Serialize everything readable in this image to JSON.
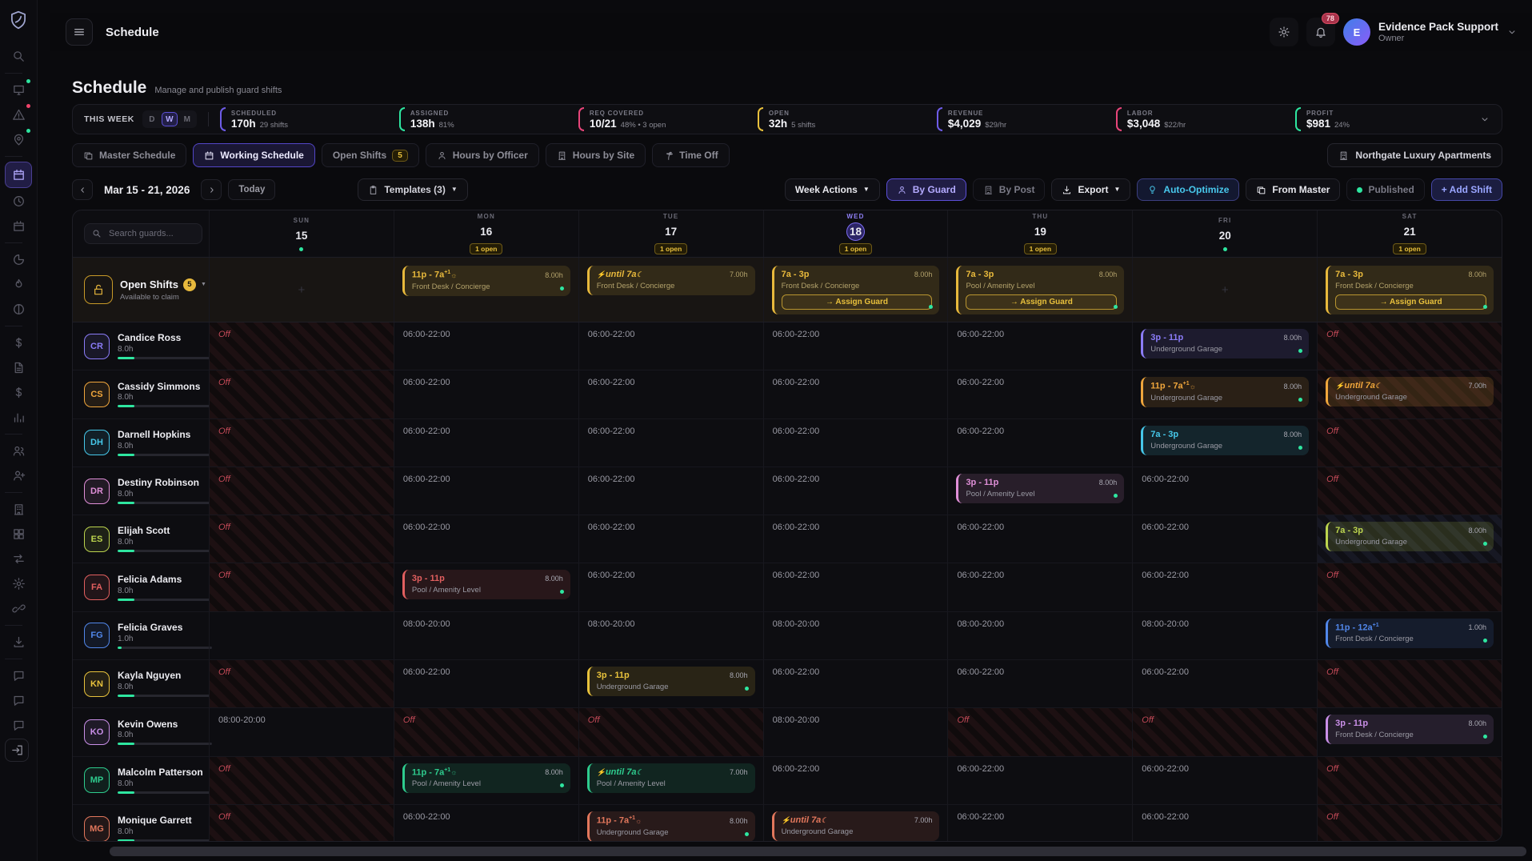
{
  "app": {
    "header_title": "Schedule",
    "notification_count": "78",
    "user": {
      "name": "Evidence Pack Support",
      "role": "Owner",
      "avatar_initial": "E"
    }
  },
  "page": {
    "title": "Schedule",
    "subtitle": "Manage and publish guard shifts"
  },
  "stats": {
    "period_label": "THIS WEEK",
    "periods": [
      {
        "label": "D",
        "active": false
      },
      {
        "label": "W",
        "active": true
      },
      {
        "label": "M",
        "active": false
      }
    ],
    "items": [
      {
        "label": "SCHEDULED",
        "value": "170h",
        "sub": "29 shifts",
        "color": "#6e5ce8"
      },
      {
        "label": "ASSIGNED",
        "value": "138h",
        "sub": "81%",
        "color": "#2ee6a0"
      },
      {
        "label": "REQ COVERED",
        "value": "10/21",
        "sub": "48% • 3 open",
        "color": "#e8457a"
      },
      {
        "label": "OPEN",
        "value": "32h",
        "sub": "5 shifts",
        "color": "#e8c03c"
      },
      {
        "label": "REVENUE",
        "value": "$4,029",
        "sub": "$29/hr",
        "color": "#6e5ce8"
      },
      {
        "label": "LABOR",
        "value": "$3,048",
        "sub": "$22/hr",
        "color": "#e8457a"
      },
      {
        "label": "PROFIT",
        "value": "$981",
        "sub": "24%",
        "color": "#2ee6a0"
      }
    ]
  },
  "tabs": [
    {
      "label": "Master Schedule",
      "icon": "copy",
      "active": false
    },
    {
      "label": "Working Schedule",
      "icon": "calendar",
      "active": true
    },
    {
      "label": "Open Shifts",
      "icon": null,
      "badge": "5",
      "active": false
    },
    {
      "label": "Hours by Officer",
      "icon": "person",
      "active": false
    },
    {
      "label": "Hours by Site",
      "icon": "building",
      "active": false
    },
    {
      "label": "Time Off",
      "icon": "palm",
      "active": false
    }
  ],
  "site_button": {
    "label": "Northgate Luxury Apartments",
    "icon": "building"
  },
  "toolbar": {
    "week_label": "Mar 15 - 21, 2026",
    "today_label": "Today",
    "templates_label": "Templates (3)",
    "actions": [
      {
        "label": "Week Actions",
        "icon": null,
        "caret": true,
        "style": "default"
      },
      {
        "label": "By Guard",
        "icon": "person",
        "caret": false,
        "style": "purple"
      },
      {
        "label": "By Post",
        "icon": "building",
        "caret": false,
        "style": "dim"
      },
      {
        "label": "Export",
        "icon": "download",
        "caret": true,
        "style": "default"
      },
      {
        "label": "Auto-Optimize",
        "icon": "bulb",
        "caret": false,
        "style": "cyan"
      },
      {
        "label": "From Master",
        "icon": "copy",
        "caret": false,
        "style": "default"
      },
      {
        "label": "Published",
        "icon": "dot-green",
        "caret": false,
        "style": "dim"
      },
      {
        "label": "+ Add Shift",
        "icon": null,
        "caret": false,
        "style": "primary"
      }
    ]
  },
  "calendar": {
    "search_placeholder": "Search guards...",
    "off_label": "Off",
    "days": [
      {
        "dow": "SUN",
        "date": "15",
        "marker": "dot",
        "today": false
      },
      {
        "dow": "MON",
        "date": "16",
        "marker": "1 open",
        "today": false
      },
      {
        "dow": "TUE",
        "date": "17",
        "marker": "1 open",
        "today": false
      },
      {
        "dow": "WED",
        "date": "18",
        "marker": "1 open",
        "today": true
      },
      {
        "dow": "THU",
        "date": "19",
        "marker": "1 open",
        "today": false
      },
      {
        "dow": "FRI",
        "date": "20",
        "marker": "dot",
        "today": false
      },
      {
        "dow": "SAT",
        "date": "21",
        "marker": "1 open",
        "today": false
      }
    ],
    "open_shifts_row": {
      "title": "Open Shifts",
      "count": "5",
      "subtitle": "Available to claim",
      "color": "#e8b93c",
      "assign_label": "→ Assign Guard",
      "cells": [
        {
          "type": "plus"
        },
        {
          "type": "shift",
          "time": "11p - 7a",
          "sup": "+1",
          "sun": true,
          "hours": "8.00h",
          "site": "Front Desk / Concierge",
          "dot": true
        },
        {
          "type": "shift",
          "carry": true,
          "time": "until 7a",
          "moon": true,
          "hours": "7.00h",
          "site": "Front Desk / Concierge"
        },
        {
          "type": "shift",
          "time": "7a - 3p",
          "hours": "8.00h",
          "site": "Front Desk / Concierge",
          "dot": true,
          "assign": true
        },
        {
          "type": "shift",
          "time": "7a - 3p",
          "hours": "8.00h",
          "site": "Pool / Amenity Level",
          "dot": true,
          "assign": true
        },
        {
          "type": "plus"
        },
        {
          "type": "shift",
          "time": "7a - 3p",
          "hours": "8.00h",
          "site": "Front Desk / Concierge",
          "dot": true,
          "assign": true
        }
      ]
    },
    "guards": [
      {
        "initials": "CR",
        "name": "Candice Ross",
        "hours": "8.0h",
        "color": "#8b7cf8",
        "progress": 18,
        "cells": [
          {
            "type": "off"
          },
          {
            "type": "avail",
            "text": "06:00-22:00"
          },
          {
            "type": "avail",
            "text": "06:00-22:00"
          },
          {
            "type": "avail",
            "text": "06:00-22:00"
          },
          {
            "type": "avail",
            "text": "06:00-22:00"
          },
          {
            "type": "shift",
            "time": "3p - 11p",
            "hours": "8.00h",
            "site": "Underground Garage",
            "dot": true
          },
          {
            "type": "off"
          }
        ]
      },
      {
        "initials": "CS",
        "name": "Cassidy Simmons",
        "hours": "8.0h",
        "color": "#f0a63c",
        "progress": 18,
        "cells": [
          {
            "type": "off"
          },
          {
            "type": "avail",
            "text": "06:00-22:00"
          },
          {
            "type": "avail",
            "text": "06:00-22:00"
          },
          {
            "type": "avail",
            "text": "06:00-22:00"
          },
          {
            "type": "avail",
            "text": "06:00-22:00"
          },
          {
            "type": "shift",
            "time": "11p - 7a",
            "sup": "+1",
            "sun": true,
            "hours": "8.00h",
            "site": "Underground Garage",
            "dot": true
          },
          {
            "type": "shift",
            "carry": true,
            "time": "until 7a",
            "moon": true,
            "hours": "7.00h",
            "site": "Underground Garage",
            "offbg": "red"
          }
        ]
      },
      {
        "initials": "DH",
        "name": "Darnell Hopkins",
        "hours": "8.0h",
        "color": "#46c8ea",
        "progress": 18,
        "cells": [
          {
            "type": "off"
          },
          {
            "type": "avail",
            "text": "06:00-22:00"
          },
          {
            "type": "avail",
            "text": "06:00-22:00"
          },
          {
            "type": "avail",
            "text": "06:00-22:00"
          },
          {
            "type": "avail",
            "text": "06:00-22:00"
          },
          {
            "type": "shift",
            "time": "7a - 3p",
            "hours": "8.00h",
            "site": "Underground Garage",
            "dot": true
          },
          {
            "type": "off"
          }
        ]
      },
      {
        "initials": "DR",
        "name": "Destiny Robinson",
        "hours": "8.0h",
        "color": "#e08fd8",
        "progress": 18,
        "cells": [
          {
            "type": "off"
          },
          {
            "type": "avail",
            "text": "06:00-22:00"
          },
          {
            "type": "avail",
            "text": "06:00-22:00"
          },
          {
            "type": "avail",
            "text": "06:00-22:00"
          },
          {
            "type": "shift",
            "time": "3p - 11p",
            "hours": "8.00h",
            "site": "Pool / Amenity Level",
            "dot": true
          },
          {
            "type": "avail",
            "text": "06:00-22:00"
          },
          {
            "type": "off"
          }
        ]
      },
      {
        "initials": "ES",
        "name": "Elijah Scott",
        "hours": "8.0h",
        "color": "#bcd44e",
        "progress": 18,
        "cells": [
          {
            "type": "off"
          },
          {
            "type": "avail",
            "text": "06:00-22:00"
          },
          {
            "type": "avail",
            "text": "06:00-22:00"
          },
          {
            "type": "avail",
            "text": "06:00-22:00"
          },
          {
            "type": "avail",
            "text": "06:00-22:00"
          },
          {
            "type": "avail",
            "text": "06:00-22:00"
          },
          {
            "type": "shift",
            "time": "7a - 3p",
            "hours": "8.00h",
            "site": "Underground Garage",
            "dot": true,
            "offbg": "slate"
          }
        ]
      },
      {
        "initials": "FA",
        "name": "Felicia Adams",
        "hours": "8.0h",
        "color": "#e25f5f",
        "progress": 18,
        "cells": [
          {
            "type": "off"
          },
          {
            "type": "shift",
            "time": "3p - 11p",
            "hours": "8.00h",
            "site": "Pool / Amenity Level",
            "dot": true
          },
          {
            "type": "avail",
            "text": "06:00-22:00"
          },
          {
            "type": "avail",
            "text": "06:00-22:00"
          },
          {
            "type": "avail",
            "text": "06:00-22:00"
          },
          {
            "type": "avail",
            "text": "06:00-22:00"
          },
          {
            "type": "off"
          }
        ]
      },
      {
        "initials": "FG",
        "name": "Felicia Graves",
        "hours": "1.0h",
        "color": "#5187ea",
        "progress": 4,
        "cells": [
          {
            "type": "empty"
          },
          {
            "type": "avail",
            "text": "08:00-20:00"
          },
          {
            "type": "avail",
            "text": "08:00-20:00"
          },
          {
            "type": "avail",
            "text": "08:00-20:00"
          },
          {
            "type": "avail",
            "text": "08:00-20:00"
          },
          {
            "type": "avail",
            "text": "08:00-20:00"
          },
          {
            "type": "shift",
            "time": "11p - 12a",
            "sup": "+1",
            "hours": "1.00h",
            "site": "Front Desk / Concierge",
            "dot": true
          }
        ]
      },
      {
        "initials": "KN",
        "name": "Kayla Nguyen",
        "hours": "8.0h",
        "color": "#e8c23c",
        "progress": 18,
        "cells": [
          {
            "type": "off"
          },
          {
            "type": "avail",
            "text": "06:00-22:00"
          },
          {
            "type": "shift",
            "time": "3p - 11p",
            "hours": "8.00h",
            "site": "Underground Garage",
            "dot": true
          },
          {
            "type": "avail",
            "text": "06:00-22:00"
          },
          {
            "type": "avail",
            "text": "06:00-22:00"
          },
          {
            "type": "avail",
            "text": "06:00-22:00"
          },
          {
            "type": "off"
          }
        ]
      },
      {
        "initials": "KO",
        "name": "Kevin Owens",
        "hours": "8.0h",
        "color": "#c98fe8",
        "progress": 18,
        "cells": [
          {
            "type": "avail",
            "text": "08:00-20:00"
          },
          {
            "type": "off"
          },
          {
            "type": "off"
          },
          {
            "type": "avail",
            "text": "08:00-20:00"
          },
          {
            "type": "off"
          },
          {
            "type": "off"
          },
          {
            "type": "shift",
            "time": "3p - 11p",
            "hours": "8.00h",
            "site": "Front Desk / Concierge",
            "dot": true
          }
        ]
      },
      {
        "initials": "MP",
        "name": "Malcolm Patterson",
        "hours": "8.0h",
        "color": "#2ecc8e",
        "progress": 18,
        "cells": [
          {
            "type": "off"
          },
          {
            "type": "shift",
            "time": "11p - 7a",
            "sup": "+1",
            "sun": true,
            "hours": "8.00h",
            "site": "Pool / Amenity Level",
            "dot": true
          },
          {
            "type": "shift",
            "carry": true,
            "time": "until 7a",
            "moon": true,
            "hours": "7.00h",
            "site": "Pool / Amenity Level"
          },
          {
            "type": "avail",
            "text": "06:00-22:00"
          },
          {
            "type": "avail",
            "text": "06:00-22:00"
          },
          {
            "type": "avail",
            "text": "06:00-22:00"
          },
          {
            "type": "off"
          }
        ]
      },
      {
        "initials": "MG",
        "name": "Monique Garrett",
        "hours": "8.0h",
        "color": "#e2775c",
        "progress": 18,
        "cells": [
          {
            "type": "off"
          },
          {
            "type": "avail",
            "text": "06:00-22:00"
          },
          {
            "type": "shift",
            "time": "11p - 7a",
            "sup": "+1",
            "sun": true,
            "hours": "8.00h",
            "site": "Underground Garage",
            "dot": true
          },
          {
            "type": "shift",
            "carry": true,
            "time": "until 7a",
            "moon": true,
            "hours": "7.00h",
            "site": "Underground Garage"
          },
          {
            "type": "avail",
            "text": "06:00-22:00"
          },
          {
            "type": "avail",
            "text": "06:00-22:00"
          },
          {
            "type": "off"
          }
        ]
      }
    ]
  },
  "sidebar": {
    "items": [
      {
        "name": "search",
        "icon": "search"
      },
      {
        "divider": true
      },
      {
        "name": "dashboard",
        "icon": "monitor",
        "dot": "#2ee6a0"
      },
      {
        "name": "alerts",
        "icon": "warning",
        "dot": "#f0436a"
      },
      {
        "name": "sites-map",
        "icon": "pin",
        "dot": "#2ee6a0"
      },
      {
        "divider": true
      },
      {
        "name": "schedule",
        "icon": "calendar",
        "active": true
      },
      {
        "name": "time-clock",
        "icon": "clock"
      },
      {
        "name": "bookings",
        "icon": "calendar2"
      },
      {
        "divider": true
      },
      {
        "name": "reports",
        "icon": "pie"
      },
      {
        "name": "incidents",
        "icon": "flame"
      },
      {
        "name": "coverage",
        "icon": "half"
      },
      {
        "divider": true
      },
      {
        "name": "payroll",
        "icon": "dollar"
      },
      {
        "name": "invoices",
        "icon": "doc"
      },
      {
        "name": "billing",
        "icon": "dollar"
      },
      {
        "name": "analytics",
        "icon": "chart"
      },
      {
        "divider": true
      },
      {
        "name": "guards",
        "icon": "people"
      },
      {
        "name": "add-guard",
        "icon": "person-add"
      },
      {
        "divider": true
      },
      {
        "name": "properties",
        "icon": "building"
      },
      {
        "name": "apps",
        "icon": "grid"
      },
      {
        "name": "transfers",
        "icon": "swap"
      },
      {
        "name": "settings",
        "icon": "gear"
      },
      {
        "name": "integrations",
        "icon": "link"
      },
      {
        "divider": true
      },
      {
        "name": "exports",
        "icon": "download"
      },
      {
        "divider": true
      },
      {
        "name": "messages-1",
        "icon": "chat"
      },
      {
        "name": "messages-2",
        "icon": "chat"
      },
      {
        "name": "messages-3",
        "icon": "chat"
      },
      {
        "name": "logout",
        "icon": "exit",
        "boxed": true
      }
    ]
  }
}
